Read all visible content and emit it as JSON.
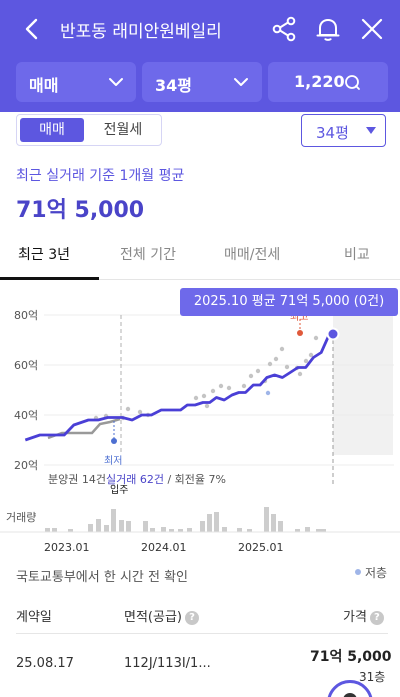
{
  "header": {
    "title": "반포동 래미안원베일리",
    "filters": [
      {
        "label": "매매"
      },
      {
        "label": "34평"
      },
      {
        "label": "1,220"
      }
    ]
  },
  "trade_type": {
    "options": [
      "매매",
      "전월세"
    ],
    "selected": "매매"
  },
  "size_select": {
    "value": "34평"
  },
  "average": {
    "label": "최근 실거래 기준 1개월 평균",
    "value": "71억 5,000"
  },
  "tabs": [
    {
      "label": "최근 3년",
      "active": true
    },
    {
      "label": "전체 기간",
      "active": false
    },
    {
      "label": "매매/전세",
      "active": false
    },
    {
      "label": "비교",
      "active": false
    }
  ],
  "chart_data": {
    "type": "line",
    "tooltip": "2025.10 평균 71억 5,000 (0건)",
    "yticks": [
      "80억",
      "60억",
      "40억",
      "20억"
    ],
    "ylim": [
      20,
      80
    ],
    "xticks": [
      "2023.01",
      "2024.01",
      "2025.01"
    ],
    "annotations": {
      "low": "최저",
      "high": "최고",
      "move_in": "입주"
    },
    "info_text": "분양권 14건",
    "info_link": "실거래 62건",
    "info_tail": " / 회전율 7%",
    "volume_label": "거래량",
    "colors": {
      "pre_trend": "#999999",
      "trend": "#4a3fd6",
      "point": "#c4c4c4",
      "low": "#4d6fd1",
      "high": "#e0593a",
      "current": "#5d57e0"
    },
    "series": [
      {
        "x": [
          2022.55,
          2022.7,
          2022.85,
          2022.95,
          2023.05,
          2023.2,
          2023.3,
          2023.4,
          2023.55,
          2023.65,
          2023.75,
          2023.85,
          2023.95,
          2024.05,
          2024.15,
          2024.22,
          2024.3,
          2024.38,
          2024.45,
          2024.52,
          2024.6,
          2024.68,
          2024.75,
          2024.82,
          2024.9,
          2024.97,
          2025.04,
          2025.12,
          2025.2,
          2025.28,
          2025.36,
          2025.44,
          2025.52,
          2025.6,
          2025.68,
          2025.76
        ],
        "y": [
          30,
          32,
          32,
          32,
          36,
          38,
          38,
          39,
          39,
          38,
          40,
          40,
          42,
          42,
          42,
          44,
          44,
          45,
          45,
          47,
          46,
          48,
          49,
          49,
          52,
          52,
          55,
          56,
          55,
          57,
          59,
          59,
          63,
          65,
          72,
          72
        ]
      }
    ]
  },
  "confirm": {
    "text": "국토교통부에서 한 시간 전 확인",
    "legend_low": "저층"
  },
  "table": {
    "headers": [
      "계약일",
      "면적(공급)",
      "가격"
    ],
    "rows": [
      {
        "date": "25.08.17",
        "area": "112J/113I/1...",
        "price": "71억 5,000",
        "floor": "31층"
      }
    ]
  }
}
